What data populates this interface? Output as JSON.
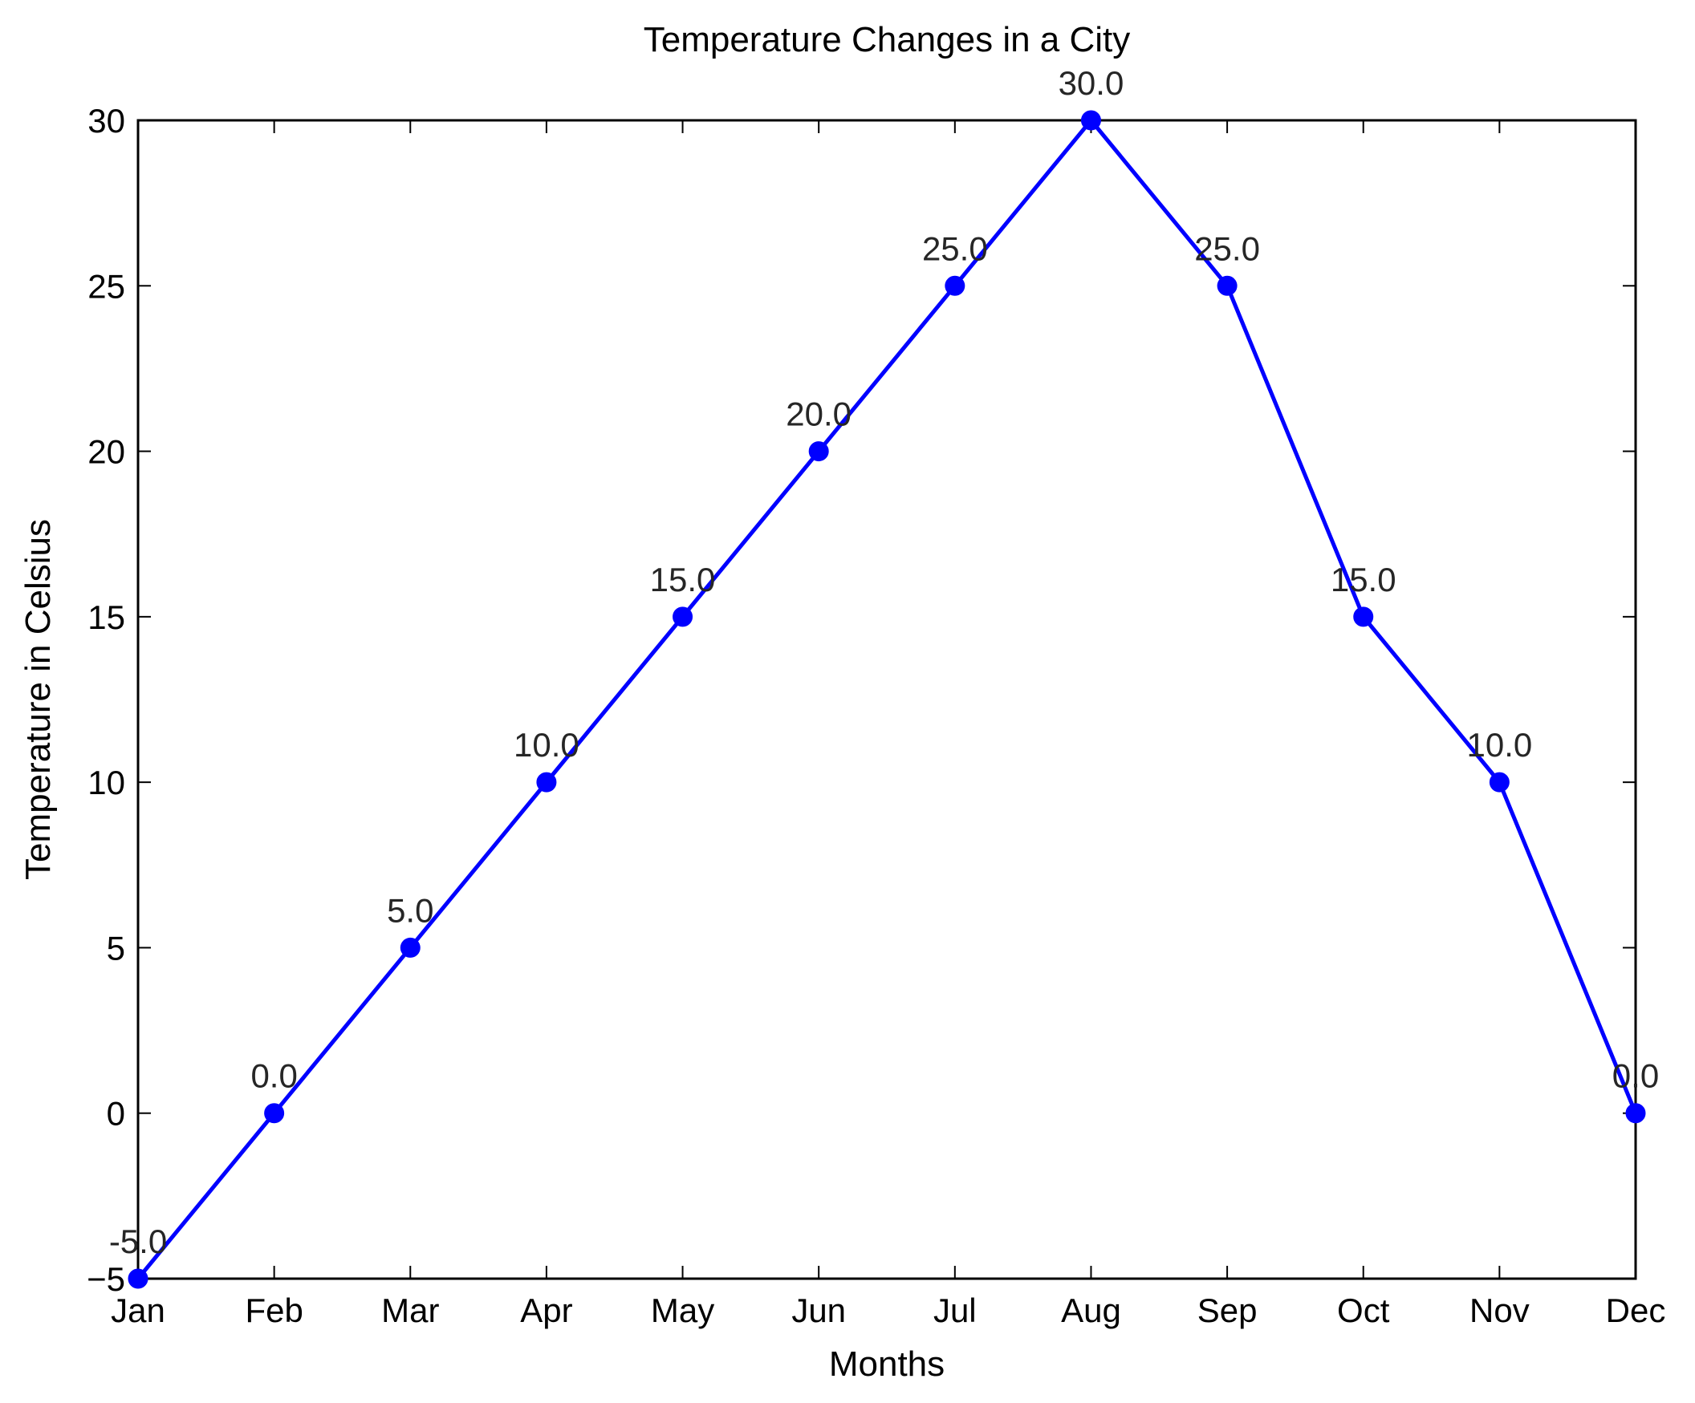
{
  "chart_data": {
    "type": "line",
    "title": "Temperature Changes in a City",
    "xlabel": "Months",
    "ylabel": "Temperature in Celsius",
    "categories": [
      "Jan",
      "Feb",
      "Mar",
      "Apr",
      "May",
      "Jun",
      "Jul",
      "Aug",
      "Sep",
      "Oct",
      "Nov",
      "Dec"
    ],
    "series": [
      {
        "values": [
          -5,
          0,
          5,
          10,
          15,
          20,
          25,
          30,
          25,
          15,
          10,
          0
        ],
        "data_labels": [
          "-5.0",
          "0.0",
          "5.0",
          "10.0",
          "15.0",
          "20.0",
          "25.0",
          "30.0",
          "25.0",
          "15.0",
          "10.0",
          "0.0"
        ],
        "color": "#0000ff"
      }
    ],
    "ylim": [
      -5,
      30
    ],
    "yticks": [
      -5,
      0,
      5,
      10,
      15,
      20,
      25,
      30
    ],
    "ytick_labels": [
      "−5",
      "0",
      "5",
      "10",
      "15",
      "20",
      "25",
      "30"
    ],
    "grid": false,
    "legend": "none"
  }
}
